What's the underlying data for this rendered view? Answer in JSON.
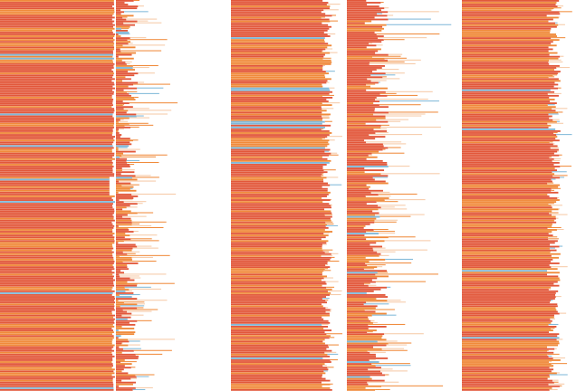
{
  "colors": {
    "background": "#ffffff",
    "primary_bar": "#e2573a",
    "secondary_bar": "#f08a3a",
    "highlight_blue": "#7fb8d8",
    "faint_light": "#f6c9a6"
  },
  "chart_data": [
    {
      "type": "bar",
      "orientation": "horizontal",
      "title": "",
      "xlabel": "",
      "ylabel": "",
      "grid": false,
      "legend": "none",
      "n_rows": 210,
      "xlim": [
        0,
        1
      ],
      "profile": "full",
      "base_value": 1.0,
      "variation": 0.0,
      "tail_min": 0.0,
      "tail_max": 0.0
    },
    {
      "type": "bar",
      "orientation": "horizontal",
      "title": "",
      "xlabel": "",
      "ylabel": "",
      "grid": false,
      "legend": "none",
      "n_rows": 210,
      "xlim": [
        0,
        1
      ],
      "profile": "sparse",
      "base_value": 0.08,
      "variation": 0.18,
      "tail_min": 0.0,
      "tail_max": 0.6
    },
    {
      "type": "bar",
      "orientation": "horizontal",
      "title": "",
      "xlabel": "",
      "ylabel": "",
      "grid": false,
      "legend": "none",
      "n_rows": 210,
      "xlim": [
        0,
        1
      ],
      "profile": "dense",
      "base_value": 0.82,
      "variation": 0.1,
      "tail_min": 0.75,
      "tail_max": 1.0
    },
    {
      "type": "bar",
      "orientation": "horizontal",
      "title": "",
      "xlabel": "",
      "ylabel": "",
      "grid": false,
      "legend": "none",
      "n_rows": 210,
      "xlim": [
        0,
        1
      ],
      "profile": "sparse",
      "base_value": 0.22,
      "variation": 0.22,
      "tail_min": 0.0,
      "tail_max": 0.95
    },
    {
      "type": "bar",
      "orientation": "horizontal",
      "title": "",
      "xlabel": "",
      "ylabel": "",
      "grid": false,
      "legend": "none",
      "n_rows": 210,
      "xlim": [
        0,
        1
      ],
      "profile": "dense",
      "base_value": 0.78,
      "variation": 0.12,
      "tail_min": 0.7,
      "tail_max": 1.0
    }
  ]
}
